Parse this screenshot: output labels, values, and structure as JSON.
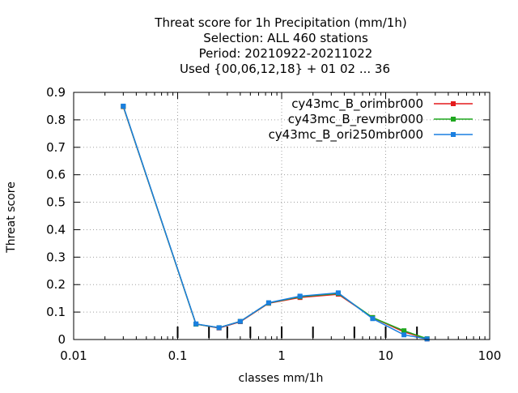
{
  "chart_data": {
    "type": "line",
    "title_lines": [
      "Threat score  for 1h Precipitation (mm/1h)",
      "Selection: ALL    460 stations",
      "Period: 20210922-20211022",
      "Used {00,06,12,18} + 01 02 ... 36"
    ],
    "xlabel": "classes mm/1h",
    "ylabel": "Threat score",
    "x_scale": "log",
    "xlim": [
      0.01,
      100
    ],
    "ylim": [
      0,
      0.9
    ],
    "x_ticks": [
      0.01,
      0.1,
      1,
      10,
      100
    ],
    "x_tick_labels": [
      "0.01",
      "0.1",
      "1",
      "10",
      "100"
    ],
    "y_ticks": [
      0,
      0.1,
      0.2,
      0.3,
      0.4,
      0.5,
      0.6,
      0.7,
      0.8,
      0.9
    ],
    "y_tick_labels": [
      "0",
      "0.1",
      "0.2",
      "0.3",
      "0.4",
      "0.5",
      "0.6",
      "0.7",
      "0.8",
      "0.9"
    ],
    "class_marks": [
      0.1,
      0.2,
      0.3,
      0.5,
      1,
      2,
      5,
      10,
      20
    ],
    "grid": true,
    "legend_position": "top-right",
    "x": [
      0.03,
      0.15,
      0.25,
      0.4,
      0.75,
      1.5,
      3.5,
      7.5,
      15,
      25
    ],
    "series": [
      {
        "name": "cy43mc_B_orimbr000",
        "color": "#e41a1c",
        "values": [
          0.848,
          0.056,
          0.042,
          0.065,
          0.132,
          0.153,
          0.165,
          0.08,
          0.028,
          0.002
        ]
      },
      {
        "name": "cy43mc_B_revmbr000",
        "color": "#1fa81f",
        "values": [
          0.849,
          0.056,
          0.043,
          0.066,
          0.133,
          0.156,
          0.168,
          0.08,
          0.032,
          0.003
        ]
      },
      {
        "name": "cy43mc_B_ori250mbr000",
        "color": "#1a7fe0",
        "values": [
          0.85,
          0.057,
          0.043,
          0.066,
          0.134,
          0.158,
          0.17,
          0.076,
          0.017,
          0.002
        ]
      }
    ]
  }
}
